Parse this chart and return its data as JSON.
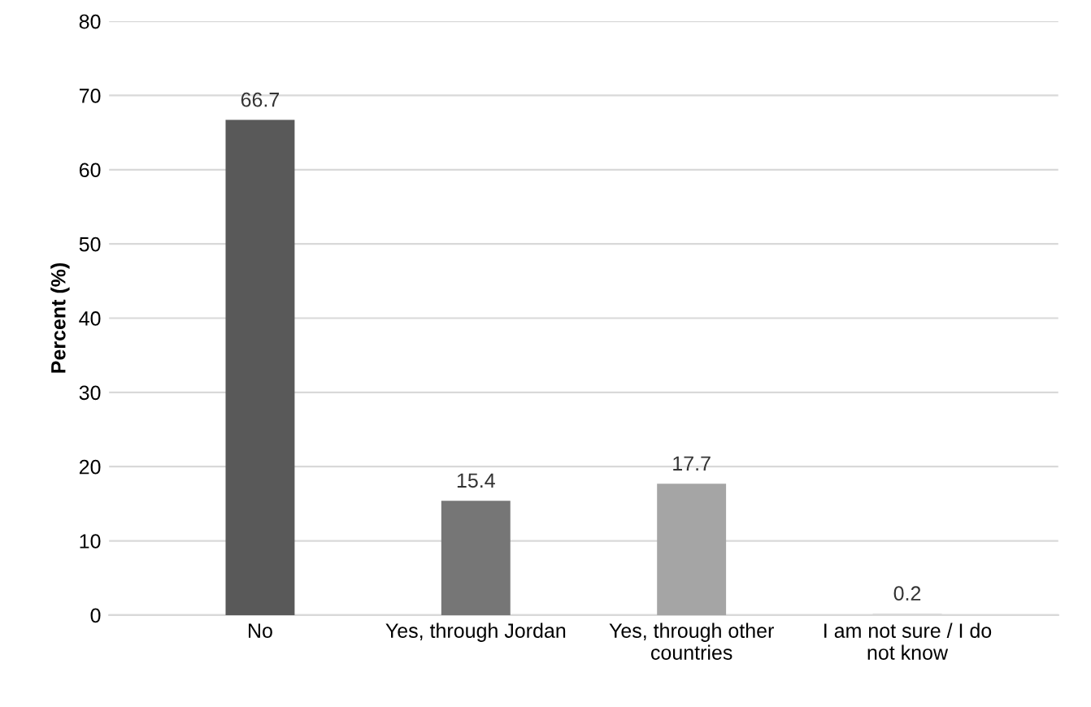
{
  "chart_data": {
    "type": "bar",
    "ylabel": "Percent (%)",
    "categories": [
      "No",
      "Yes, through Jordan",
      "Yes, through other\ncountries",
      "I am not sure / I do\nnot know"
    ],
    "values": [
      66.7,
      15.4,
      17.7,
      0.2
    ],
    "colors": [
      "#595959",
      "#767676",
      "#a5a5a5",
      "#d9d9d9"
    ],
    "ylim": [
      0,
      80
    ],
    "yticks": [
      0,
      10,
      20,
      30,
      40,
      50,
      60,
      70,
      80
    ],
    "grid": "y",
    "data_labels": true
  }
}
